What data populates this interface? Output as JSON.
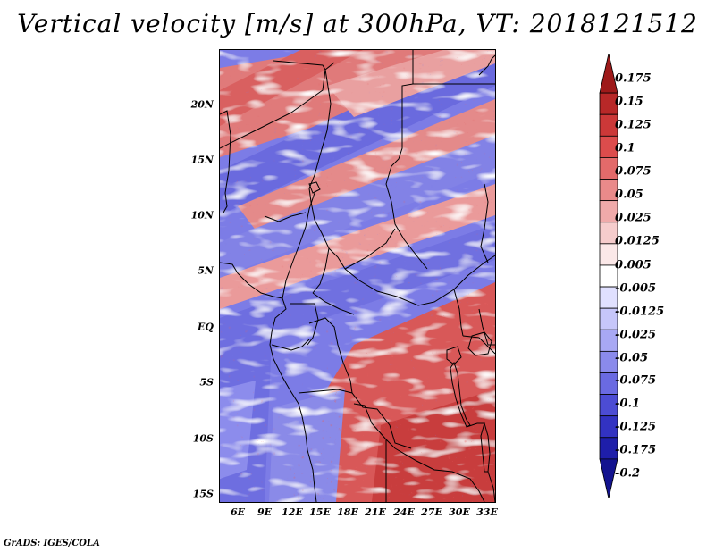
{
  "title": "Vertical velocity [m/s] at 300hPa, VT: 2018121512",
  "footer": "GrADS: IGES/COLA",
  "axes": {
    "y_ticks": [
      "20N",
      "15N",
      "10N",
      "5N",
      "EQ",
      "5S",
      "10S",
      "15S"
    ],
    "x_ticks": [
      "6E",
      "9E",
      "12E",
      "15E",
      "18E",
      "21E",
      "24E",
      "27E",
      "30E",
      "33E"
    ],
    "lon_range": [
      3.5,
      33.5
    ],
    "lat_range": [
      -16.5,
      25
    ]
  },
  "colorbar": {
    "labels": [
      "0.175",
      "0.15",
      "0.125",
      "0.1",
      "0.075",
      "0.05",
      "0.025",
      "0.0125",
      "0.005",
      "-0.005",
      "-0.0125",
      "-0.025",
      "-0.05",
      "-0.075",
      "-0.1",
      "-0.125",
      "-0.175",
      "-0.2"
    ],
    "colors": [
      "#9e1a1a",
      "#b82828",
      "#cc3838",
      "#dc4c4c",
      "#e36a6a",
      "#ea8a8a",
      "#f0aaaa",
      "#f6cccc",
      "#fbe8e8",
      "#ffffff",
      "#e0e0ff",
      "#c6c6fa",
      "#a8a8f4",
      "#8a8aec",
      "#6a6ae2",
      "#4c4cd4",
      "#3232c2",
      "#1e1eaa",
      "#13138f"
    ]
  },
  "colors": {
    "positive": "#d23b3b",
    "negative": "#4646d2",
    "neutral": "#ffffff",
    "border_lines": "#000000"
  }
}
